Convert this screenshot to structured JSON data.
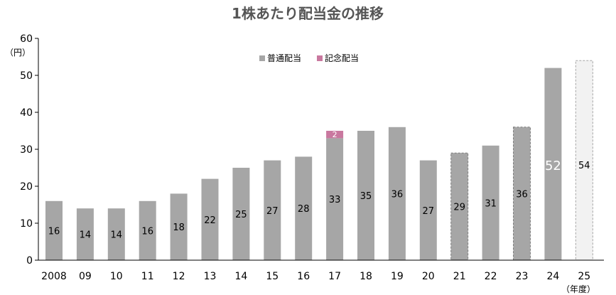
{
  "chart_data": {
    "type": "bar",
    "title": "1株あたり配当金の推移",
    "ylabel": "（円）",
    "xlabel": "（年度）",
    "ylim": [
      0,
      60
    ],
    "yticks": [
      0,
      10,
      20,
      30,
      40,
      50,
      60
    ],
    "grid": false,
    "legend_position": "top-center",
    "categories": [
      "2008",
      "09",
      "10",
      "11",
      "12",
      "13",
      "14",
      "15",
      "16",
      "17",
      "18",
      "19",
      "20",
      "21",
      "22",
      "23",
      "24",
      "25"
    ],
    "series": [
      {
        "name": "普通配当",
        "color": "#a6a6a6",
        "values": [
          16,
          14,
          14,
          16,
          18,
          22,
          25,
          27,
          28,
          33,
          35,
          36,
          27,
          29,
          31,
          36,
          52,
          54
        ]
      },
      {
        "name": "記念配当",
        "color": "#c9789f",
        "values": [
          0,
          0,
          0,
          0,
          0,
          0,
          0,
          0,
          0,
          2,
          0,
          0,
          0,
          0,
          0,
          0,
          0,
          0
        ]
      }
    ],
    "dashed_outline_categories": [
      "21",
      "23"
    ],
    "forecast_categories": [
      "25"
    ],
    "highlighted_label_categories": [
      "24"
    ],
    "forecast_fill": "#f2f2f2"
  }
}
